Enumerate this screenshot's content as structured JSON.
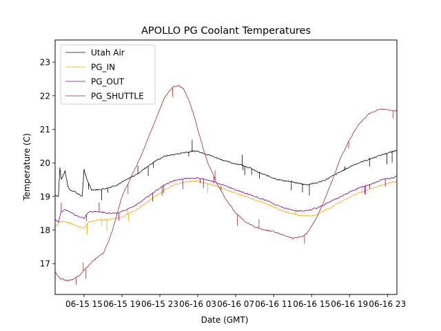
{
  "chart_data": {
    "type": "line",
    "title": "APOLLO PG Coolant Temperatures",
    "xlabel": "Date (GMT)",
    "ylabel": "Temperature (C)",
    "x_units": "hours since 06-15 00:00 GMT",
    "xlim": [
      11.95,
      48.0
    ],
    "ylim": [
      16.08,
      23.66
    ],
    "grid": false,
    "legend_position": "top-left",
    "x_ticks": [
      15,
      19,
      23,
      27,
      31,
      35,
      39,
      43,
      47
    ],
    "x_tick_labels": [
      "06-15 15",
      "06-15 19",
      "06-15 23",
      "06-16 03",
      "06-16 07",
      "06-16 11",
      "06-16 15",
      "06-16 19",
      "06-16 23"
    ],
    "y_ticks": [
      17,
      18,
      19,
      20,
      21,
      22,
      23
    ],
    "y_tick_labels": [
      "17",
      "18",
      "19",
      "20",
      "21",
      "22",
      "23"
    ],
    "series": [
      {
        "name": "Utah Air",
        "color": "#000000",
        "x": [
          11.95,
          12.3,
          12.45,
          12.6,
          13.0,
          13.3,
          13.5,
          14.0,
          14.5,
          14.8,
          15.0,
          15.3,
          15.8,
          16.5,
          17.5,
          18.5,
          19.5,
          20.5,
          21.5,
          22.5,
          23.5,
          24.5,
          25.5,
          26.5,
          27.0,
          27.5,
          28.5,
          29.5,
          30.5,
          31.5,
          32.5,
          33.5,
          34.5,
          35.5,
          36.5,
          37.5,
          38.5,
          39.5,
          40.5,
          41.5,
          42.5,
          43.5,
          44.5,
          45.5,
          46.5,
          47.5,
          48.0
        ],
        "y": [
          19.05,
          19.0,
          19.85,
          19.5,
          19.75,
          19.3,
          19.2,
          19.15,
          19.05,
          19.0,
          19.8,
          19.5,
          19.2,
          19.2,
          19.25,
          19.35,
          19.5,
          19.65,
          19.85,
          20.05,
          20.2,
          20.25,
          20.3,
          20.35,
          20.35,
          20.3,
          20.2,
          20.1,
          20.0,
          19.95,
          19.85,
          19.7,
          19.6,
          19.5,
          19.45,
          19.4,
          19.35,
          19.4,
          19.5,
          19.65,
          19.8,
          19.95,
          20.05,
          20.15,
          20.25,
          20.33,
          20.38
        ]
      },
      {
        "name": "PG_IN",
        "color": "#ffa500",
        "x": [
          11.95,
          12.5,
          13.0,
          13.5,
          14.0,
          14.5,
          15.0,
          15.5,
          16.5,
          17.5,
          18.5,
          19.5,
          20.5,
          21.5,
          22.5,
          23.5,
          24.5,
          25.5,
          26.5,
          27.0,
          27.5,
          28.5,
          29.5,
          30.5,
          31.5,
          32.5,
          33.5,
          34.5,
          35.5,
          36.5,
          37.5,
          38.5,
          39.5,
          40.5,
          41.5,
          42.5,
          43.5,
          44.5,
          45.5,
          46.5,
          47.5,
          48.0
        ],
        "y": [
          18.1,
          18.25,
          18.25,
          18.2,
          18.15,
          18.1,
          18.05,
          18.25,
          18.3,
          18.3,
          18.35,
          18.45,
          18.6,
          18.8,
          19.0,
          19.2,
          19.35,
          19.42,
          19.45,
          19.45,
          19.42,
          19.35,
          19.25,
          19.15,
          19.05,
          18.95,
          18.85,
          18.75,
          18.62,
          18.52,
          18.45,
          18.42,
          18.45,
          18.6,
          18.75,
          18.9,
          19.05,
          19.15,
          19.25,
          19.35,
          19.42,
          19.45
        ]
      },
      {
        "name": "PG_OUT",
        "color": "#800080",
        "x": [
          11.95,
          12.3,
          12.6,
          13.0,
          13.5,
          14.0,
          14.5,
          15.0,
          15.5,
          16.5,
          17.5,
          18.5,
          19.5,
          20.5,
          21.5,
          22.5,
          23.5,
          24.5,
          25.5,
          26.5,
          27.0,
          27.5,
          28.5,
          29.5,
          30.5,
          31.5,
          32.5,
          33.5,
          34.5,
          35.5,
          36.5,
          37.5,
          38.5,
          39.5,
          40.5,
          41.5,
          42.5,
          43.5,
          44.5,
          45.5,
          46.5,
          47.5,
          48.0
        ],
        "y": [
          18.3,
          18.25,
          18.55,
          18.6,
          18.55,
          18.45,
          18.4,
          18.35,
          18.55,
          18.55,
          18.5,
          18.5,
          18.6,
          18.75,
          18.95,
          19.15,
          19.35,
          19.47,
          19.53,
          19.55,
          19.55,
          19.52,
          19.45,
          19.35,
          19.25,
          19.15,
          19.05,
          18.95,
          18.85,
          18.72,
          18.62,
          18.57,
          18.58,
          18.65,
          18.78,
          18.92,
          19.05,
          19.2,
          19.3,
          19.4,
          19.5,
          19.55,
          19.6
        ]
      },
      {
        "name": "PG_SHUTTLE",
        "color": "#a52a2a",
        "x": [
          11.95,
          12.5,
          13.0,
          13.5,
          14.0,
          14.5,
          15.0,
          15.5,
          16.0,
          16.5,
          17.0,
          17.5,
          18.0,
          18.5,
          19.0,
          20.0,
          21.0,
          22.0,
          23.0,
          23.5,
          24.0,
          24.5,
          25.0,
          25.5,
          26.0,
          26.5,
          27.0,
          27.5,
          28.0,
          29.0,
          30.0,
          31.0,
          32.0,
          33.0,
          34.0,
          35.0,
          36.0,
          37.0,
          38.0,
          38.5,
          39.0,
          39.5,
          40.0,
          41.0,
          42.0,
          43.0,
          44.0,
          45.0,
          46.0,
          46.5,
          47.0,
          47.5,
          48.0
        ],
        "y": [
          16.75,
          16.55,
          16.5,
          16.5,
          16.55,
          16.65,
          16.8,
          16.95,
          17.1,
          17.2,
          17.3,
          17.6,
          18.0,
          18.5,
          19.0,
          19.6,
          20.2,
          20.9,
          21.6,
          21.95,
          22.15,
          22.28,
          22.3,
          22.2,
          21.9,
          21.5,
          21.0,
          20.5,
          20.05,
          19.4,
          18.9,
          18.5,
          18.25,
          18.1,
          18.0,
          17.95,
          17.85,
          17.75,
          17.8,
          17.9,
          18.1,
          18.35,
          18.65,
          19.35,
          20.1,
          20.7,
          21.15,
          21.45,
          21.58,
          21.6,
          21.58,
          21.55,
          21.55
        ]
      }
    ]
  }
}
